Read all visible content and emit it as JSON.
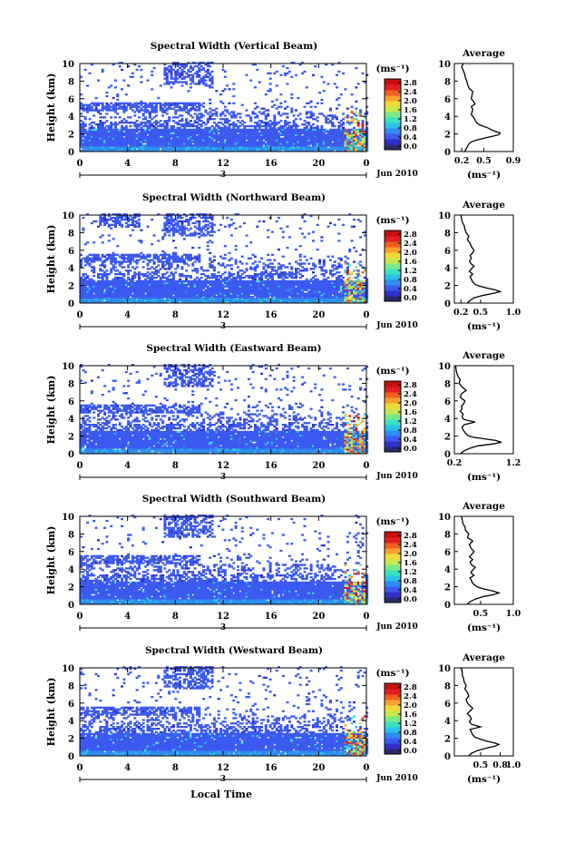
{
  "figure": {
    "xlabel": "Local Time",
    "colorbar_unit": "(ms⁻¹)",
    "colorbar_ticks": [
      "2.8",
      "2.4",
      "2.0",
      "1.6",
      "1.2",
      "0.8",
      "0.4",
      "0.0"
    ],
    "colormap": [
      "#2a2a6e",
      "#3030c8",
      "#3c5af0",
      "#2f8cf0",
      "#2fc0e8",
      "#3ce0c0",
      "#7ae888",
      "#c8e850",
      "#f0d838",
      "#f8a030",
      "#f06020",
      "#e02020",
      "#c81010"
    ],
    "date_label": "Jun 2010",
    "day_label": "3"
  },
  "chart_data": [
    {
      "type": "heatmap",
      "title": "Spectral Width (Vertical Beam)",
      "ylabel": "Height (km)",
      "xlabel": "",
      "xlim": [
        0,
        24
      ],
      "ylim": [
        0,
        10
      ],
      "xticks": [
        "0",
        "4",
        "8",
        "12",
        "16",
        "20",
        "0"
      ],
      "yticks": [
        "0",
        "2",
        "4",
        "6",
        "8",
        "10"
      ],
      "colorbar": {
        "label": "(ms⁻¹)",
        "min": 0.0,
        "max": 2.8
      },
      "date": "Jun 2010",
      "day": "3"
    },
    {
      "type": "line",
      "title": "Average",
      "xlabel": "(ms⁻¹)",
      "xticks": [
        "0.2",
        "0.5",
        "0.9"
      ],
      "yticks": [
        "0",
        "2",
        "4",
        "6",
        "8",
        "10"
      ],
      "xlim": [
        0.1,
        0.9
      ],
      "ylim": [
        0,
        10
      ],
      "x": [
        0.24,
        0.26,
        0.28,
        0.3,
        0.33,
        0.4,
        0.5,
        0.6,
        0.7,
        0.72,
        0.62,
        0.55,
        0.45,
        0.4,
        0.38,
        0.36,
        0.33,
        0.34,
        0.35,
        0.33,
        0.38,
        0.36,
        0.33,
        0.34,
        0.35,
        0.3,
        0.28,
        0.27,
        0.25,
        0.24,
        0.22,
        0.2,
        0.22
      ],
      "y": [
        0.0,
        0.3,
        0.6,
        0.9,
        1.1,
        1.3,
        1.5,
        1.7,
        1.9,
        2.1,
        2.4,
        2.7,
        3.0,
        3.3,
        3.6,
        3.9,
        4.2,
        4.5,
        4.8,
        5.1,
        5.4,
        5.7,
        6.0,
        6.4,
        6.8,
        7.2,
        7.6,
        8.0,
        8.4,
        8.8,
        9.2,
        9.6,
        10.0
      ]
    },
    {
      "type": "heatmap",
      "title": "Spectral Width (Northward Beam)",
      "ylabel": "Height (km)",
      "xlabel": "",
      "xlim": [
        0,
        24
      ],
      "ylim": [
        0,
        10
      ],
      "xticks": [
        "0",
        "4",
        "8",
        "12",
        "16",
        "20",
        "0"
      ],
      "yticks": [
        "0",
        "2",
        "4",
        "6",
        "8",
        "10"
      ],
      "colorbar": {
        "label": "(ms⁻¹)",
        "min": 0.0,
        "max": 2.8
      },
      "date": "Jun 2010",
      "day": "3"
    },
    {
      "type": "line",
      "title": "Average",
      "xlabel": "(ms⁻¹)",
      "xticks": [
        "0.2",
        "0.5",
        "1.0"
      ],
      "yticks": [
        "0",
        "2",
        "4",
        "6",
        "8",
        "10"
      ],
      "xlim": [
        0.1,
        1.0
      ],
      "ylim": [
        0,
        10
      ],
      "x": [
        0.3,
        0.34,
        0.4,
        0.55,
        0.7,
        0.8,
        0.72,
        0.6,
        0.5,
        0.42,
        0.38,
        0.36,
        0.34,
        0.38,
        0.33,
        0.36,
        0.4,
        0.35,
        0.33,
        0.36,
        0.34,
        0.38,
        0.4,
        0.36,
        0.34,
        0.3,
        0.32,
        0.28,
        0.26,
        0.25,
        0.22,
        0.21,
        0.2
      ],
      "y": [
        0.0,
        0.3,
        0.6,
        0.9,
        1.1,
        1.3,
        1.5,
        1.7,
        1.9,
        2.1,
        2.4,
        2.7,
        3.0,
        3.3,
        3.6,
        3.9,
        4.2,
        4.5,
        4.8,
        5.1,
        5.4,
        5.7,
        6.0,
        6.4,
        6.8,
        7.2,
        7.6,
        8.0,
        8.4,
        8.8,
        9.2,
        9.6,
        10.0
      ]
    },
    {
      "type": "heatmap",
      "title": "Spectral Width (Eastward Beam)",
      "ylabel": "Height (km)",
      "xlabel": "",
      "xlim": [
        0,
        24
      ],
      "ylim": [
        0,
        10
      ],
      "xticks": [
        "0",
        "4",
        "8",
        "12",
        "16",
        "20",
        "0"
      ],
      "yticks": [
        "0",
        "2",
        "4",
        "6",
        "8",
        "10"
      ],
      "colorbar": {
        "label": "(ms⁻¹)",
        "min": 0.0,
        "max": 2.8
      },
      "date": "Jun 2010",
      "day": "3"
    },
    {
      "type": "line",
      "title": "Average",
      "xlabel": "(ms⁻¹)",
      "xticks": [
        "0.2",
        "1.2"
      ],
      "yticks": [
        "0",
        "2",
        "4",
        "6",
        "8",
        "10"
      ],
      "xlim": [
        0.2,
        1.2
      ],
      "ylim": [
        0,
        10
      ],
      "x": [
        0.3,
        0.36,
        0.45,
        0.6,
        0.85,
        1.0,
        0.9,
        0.7,
        0.5,
        0.42,
        0.38,
        0.35,
        0.33,
        0.37,
        0.55,
        0.36,
        0.33,
        0.35,
        0.3,
        0.33,
        0.32,
        0.36,
        0.38,
        0.3,
        0.32,
        0.4,
        0.33,
        0.28,
        0.3,
        0.26,
        0.24,
        0.23,
        0.22
      ],
      "y": [
        0.0,
        0.3,
        0.6,
        0.9,
        1.1,
        1.3,
        1.5,
        1.7,
        1.9,
        2.1,
        2.4,
        2.7,
        3.0,
        3.3,
        3.6,
        3.9,
        4.2,
        4.5,
        4.8,
        5.1,
        5.4,
        5.7,
        6.0,
        6.4,
        6.8,
        7.2,
        7.6,
        8.0,
        8.4,
        8.8,
        9.2,
        9.6,
        10.0
      ]
    },
    {
      "type": "heatmap",
      "title": "Spectral Width (Southward Beam)",
      "ylabel": "Height (km)",
      "xlabel": "",
      "xlim": [
        0,
        24
      ],
      "ylim": [
        0,
        10
      ],
      "xticks": [
        "0",
        "4",
        "8",
        "12",
        "16",
        "20",
        "0"
      ],
      "yticks": [
        "0",
        "2",
        "4",
        "6",
        "8",
        "10"
      ],
      "colorbar": {
        "label": "(ms⁻¹)",
        "min": 0.0,
        "max": 2.8
      },
      "date": "Jun 2010",
      "day": "3"
    },
    {
      "type": "line",
      "title": "Average",
      "xlabel": "(ms⁻¹)",
      "xticks": [
        "0.5",
        "1.0"
      ],
      "yticks": [
        "0",
        "2",
        "4",
        "6",
        "8",
        "10"
      ],
      "xlim": [
        0.1,
        1.0
      ],
      "ylim": [
        0,
        10
      ],
      "x": [
        0.3,
        0.34,
        0.42,
        0.55,
        0.7,
        0.78,
        0.7,
        0.58,
        0.48,
        0.42,
        0.38,
        0.36,
        0.34,
        0.4,
        0.35,
        0.38,
        0.42,
        0.36,
        0.34,
        0.38,
        0.33,
        0.37,
        0.4,
        0.35,
        0.33,
        0.38,
        0.3,
        0.32,
        0.27,
        0.26,
        0.23,
        0.22,
        0.21
      ],
      "y": [
        0.0,
        0.3,
        0.6,
        0.9,
        1.1,
        1.3,
        1.5,
        1.7,
        1.9,
        2.1,
        2.4,
        2.7,
        3.0,
        3.3,
        3.6,
        3.9,
        4.2,
        4.5,
        4.8,
        5.1,
        5.4,
        5.7,
        6.0,
        6.4,
        6.8,
        7.2,
        7.6,
        8.0,
        8.4,
        8.8,
        9.2,
        9.6,
        10.0
      ]
    },
    {
      "type": "heatmap",
      "title": "Spectral Width (Westward Beam)",
      "ylabel": "Height (km)",
      "xlabel": "Local Time",
      "xlim": [
        0,
        24
      ],
      "ylim": [
        0,
        10
      ],
      "xticks": [
        "0",
        "4",
        "8",
        "12",
        "16",
        "20",
        "0"
      ],
      "yticks": [
        "0",
        "2",
        "4",
        "6",
        "8",
        "10"
      ],
      "colorbar": {
        "label": "(ms⁻¹)",
        "min": 0.0,
        "max": 2.8
      },
      "date": "Jun 2010",
      "day": "3"
    },
    {
      "type": "line",
      "title": "Average",
      "xlabel": "(ms⁻¹)",
      "xticks": [
        "0.5",
        "0.8",
        "1.0"
      ],
      "yticks": [
        "0",
        "2",
        "4",
        "6",
        "8",
        "10"
      ],
      "xlim": [
        0.1,
        1.0
      ],
      "ylim": [
        0,
        10
      ],
      "x": [
        0.32,
        0.36,
        0.45,
        0.6,
        0.72,
        0.78,
        0.7,
        0.58,
        0.5,
        0.42,
        0.38,
        0.36,
        0.34,
        0.5,
        0.36,
        0.33,
        0.36,
        0.34,
        0.3,
        0.34,
        0.38,
        0.34,
        0.3,
        0.28,
        0.32,
        0.3,
        0.26,
        0.28,
        0.25,
        0.24,
        0.22,
        0.22,
        0.2
      ],
      "y": [
        0.0,
        0.3,
        0.6,
        0.9,
        1.1,
        1.3,
        1.5,
        1.7,
        1.9,
        2.1,
        2.4,
        2.7,
        3.0,
        3.3,
        3.6,
        3.9,
        4.2,
        4.5,
        4.8,
        5.1,
        5.4,
        5.7,
        6.0,
        6.4,
        6.8,
        7.2,
        7.6,
        8.0,
        8.4,
        8.8,
        9.2,
        9.6,
        10.0
      ]
    }
  ]
}
